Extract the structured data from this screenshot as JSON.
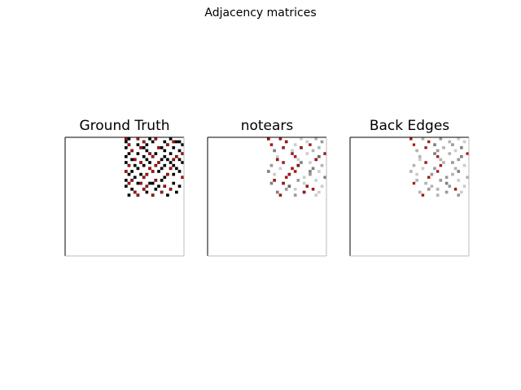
{
  "figure": {
    "suptitle": "Adjacency matrices"
  },
  "chart_data": [
    {
      "type": "heatmap",
      "title": "Ground Truth",
      "n": 40,
      "colormap": "greys",
      "true_edge_color": "#c00000",
      "cells": [
        [
          0,
          20,
          1
        ],
        [
          0,
          21,
          1
        ],
        [
          0,
          24,
          1
        ],
        [
          0,
          28,
          1
        ],
        [
          0,
          30,
          1
        ],
        [
          0,
          35,
          1
        ],
        [
          1,
          20,
          1
        ],
        [
          1,
          26,
          1
        ],
        [
          1,
          29,
          1
        ],
        [
          1,
          33,
          1
        ],
        [
          1,
          36,
          1
        ],
        [
          1,
          37,
          1
        ],
        [
          1,
          38,
          1
        ],
        [
          2,
          21,
          1
        ],
        [
          2,
          24,
          1
        ],
        [
          2,
          27,
          1
        ],
        [
          2,
          34,
          1
        ],
        [
          2,
          39,
          1
        ],
        [
          3,
          20,
          1
        ],
        [
          3,
          25,
          1
        ],
        [
          3,
          26,
          1
        ],
        [
          3,
          31,
          1
        ],
        [
          3,
          32,
          1
        ],
        [
          3,
          36,
          1
        ],
        [
          4,
          22,
          1
        ],
        [
          4,
          27,
          1
        ],
        [
          4,
          33,
          1
        ],
        [
          4,
          38,
          1
        ],
        [
          5,
          21,
          1
        ],
        [
          5,
          24,
          1
        ],
        [
          5,
          28,
          1
        ],
        [
          5,
          30,
          1
        ],
        [
          5,
          35,
          1
        ],
        [
          5,
          39,
          1
        ],
        [
          6,
          20,
          1
        ],
        [
          6,
          26,
          1
        ],
        [
          6,
          29,
          1
        ],
        [
          6,
          33,
          1
        ],
        [
          6,
          37,
          1
        ],
        [
          7,
          22,
          1
        ],
        [
          7,
          23,
          1
        ],
        [
          7,
          27,
          1
        ],
        [
          7,
          32,
          1
        ],
        [
          7,
          34,
          1
        ],
        [
          7,
          36,
          1
        ],
        [
          7,
          38,
          1
        ],
        [
          8,
          20,
          1
        ],
        [
          8,
          25,
          1
        ],
        [
          8,
          28,
          1
        ],
        [
          8,
          31,
          1
        ],
        [
          8,
          35,
          1
        ],
        [
          8,
          39,
          1
        ],
        [
          9,
          21,
          1
        ],
        [
          9,
          23,
          1
        ],
        [
          9,
          26,
          1
        ],
        [
          9,
          30,
          1
        ],
        [
          9,
          33,
          1
        ],
        [
          9,
          36,
          1
        ],
        [
          10,
          24,
          1
        ],
        [
          10,
          28,
          1
        ],
        [
          10,
          32,
          1
        ],
        [
          10,
          35,
          1
        ],
        [
          10,
          37,
          1
        ],
        [
          11,
          20,
          1
        ],
        [
          11,
          22,
          1
        ],
        [
          11,
          29,
          1
        ],
        [
          11,
          31,
          1
        ],
        [
          11,
          38,
          1
        ],
        [
          12,
          21,
          1
        ],
        [
          12,
          25,
          1
        ],
        [
          12,
          27,
          1
        ],
        [
          12,
          34,
          1
        ],
        [
          12,
          36,
          1
        ],
        [
          13,
          23,
          1
        ],
        [
          13,
          26,
          1
        ],
        [
          13,
          33,
          1
        ],
        [
          13,
          39,
          1
        ],
        [
          14,
          20,
          1
        ],
        [
          14,
          22,
          1
        ],
        [
          14,
          30,
          1
        ],
        [
          14,
          32,
          1
        ],
        [
          15,
          21,
          1
        ],
        [
          15,
          24,
          1
        ],
        [
          15,
          25,
          1
        ],
        [
          15,
          28,
          1
        ],
        [
          15,
          29,
          1
        ],
        [
          15,
          36,
          1
        ],
        [
          16,
          20,
          1
        ],
        [
          16,
          27,
          1
        ],
        [
          16,
          31,
          1
        ],
        [
          16,
          33,
          1
        ],
        [
          16,
          38,
          1
        ],
        [
          17,
          22,
          1
        ],
        [
          17,
          26,
          1
        ],
        [
          17,
          30,
          1
        ],
        [
          17,
          35,
          1
        ],
        [
          18,
          23,
          1
        ],
        [
          18,
          27,
          1
        ],
        [
          18,
          32,
          1
        ],
        [
          18,
          37,
          1
        ],
        [
          19,
          21,
          1
        ],
        [
          19,
          24,
          1
        ],
        [
          19,
          29,
          1
        ],
        [
          19,
          34,
          1
        ]
      ],
      "true_edges": [
        [
          0,
          20
        ],
        [
          0,
          24
        ],
        [
          0,
          30
        ],
        [
          1,
          26
        ],
        [
          1,
          36
        ],
        [
          2,
          21
        ],
        [
          2,
          34
        ],
        [
          3,
          25
        ],
        [
          3,
          31
        ],
        [
          4,
          22
        ],
        [
          5,
          28
        ],
        [
          5,
          39
        ],
        [
          6,
          29
        ],
        [
          6,
          37
        ],
        [
          7,
          23
        ],
        [
          7,
          36
        ],
        [
          8,
          25
        ],
        [
          8,
          31
        ],
        [
          9,
          21
        ],
        [
          9,
          30
        ],
        [
          10,
          28
        ],
        [
          10,
          35
        ],
        [
          11,
          20
        ],
        [
          11,
          29
        ],
        [
          12,
          27
        ],
        [
          12,
          34
        ],
        [
          13,
          26
        ],
        [
          13,
          39
        ],
        [
          14,
          22
        ],
        [
          14,
          30
        ],
        [
          15,
          21
        ],
        [
          15,
          25
        ],
        [
          16,
          27
        ],
        [
          16,
          33
        ],
        [
          17,
          26
        ],
        [
          17,
          35
        ],
        [
          18,
          23
        ],
        [
          18,
          32
        ],
        [
          19,
          24
        ],
        [
          19,
          29
        ]
      ]
    },
    {
      "type": "heatmap",
      "title": "notears",
      "n": 40,
      "colormap": "greys",
      "true_edge_color": "#c00000",
      "cells": [
        [
          0,
          20,
          0.9
        ],
        [
          0,
          24,
          0.7
        ],
        [
          0,
          31,
          0.2
        ],
        [
          0,
          36,
          0.3
        ],
        [
          1,
          26,
          0.8
        ],
        [
          1,
          33,
          0.2
        ],
        [
          1,
          38,
          0.4
        ],
        [
          2,
          21,
          0.6
        ],
        [
          2,
          29,
          0.2
        ],
        [
          2,
          34,
          0.5
        ],
        [
          3,
          25,
          0.7
        ],
        [
          3,
          31,
          0.8
        ],
        [
          3,
          37,
          0.3
        ],
        [
          4,
          22,
          0.5
        ],
        [
          4,
          28,
          0.2
        ],
        [
          4,
          35,
          0.3
        ],
        [
          5,
          28,
          0.6
        ],
        [
          5,
          33,
          0.2
        ],
        [
          5,
          39,
          0.7
        ],
        [
          6,
          29,
          0.5
        ],
        [
          6,
          37,
          0.6
        ],
        [
          6,
          23,
          0.2
        ],
        [
          7,
          23,
          0.7
        ],
        [
          7,
          30,
          0.2
        ],
        [
          7,
          36,
          0.8
        ],
        [
          8,
          25,
          0.6
        ],
        [
          8,
          31,
          0.5
        ],
        [
          8,
          34,
          0.2
        ],
        [
          9,
          21,
          0.4
        ],
        [
          9,
          30,
          0.9
        ],
        [
          9,
          38,
          0.3
        ],
        [
          10,
          28,
          0.7
        ],
        [
          10,
          35,
          0.5
        ],
        [
          10,
          24,
          0.2
        ],
        [
          11,
          20,
          0.5
        ],
        [
          11,
          29,
          0.6
        ],
        [
          11,
          34,
          0.5
        ],
        [
          11,
          37,
          0.2
        ],
        [
          12,
          27,
          0.8
        ],
        [
          12,
          34,
          0.4
        ],
        [
          12,
          22,
          0.2
        ],
        [
          13,
          26,
          0.6
        ],
        [
          13,
          39,
          0.5
        ],
        [
          13,
          32,
          0.2
        ],
        [
          14,
          22,
          0.7
        ],
        [
          14,
          30,
          0.4
        ],
        [
          14,
          36,
          0.2
        ],
        [
          15,
          21,
          0.5
        ],
        [
          15,
          25,
          0.8
        ],
        [
          15,
          32,
          0.2
        ],
        [
          16,
          27,
          0.6
        ],
        [
          16,
          33,
          0.7
        ],
        [
          16,
          38,
          0.2
        ],
        [
          17,
          26,
          0.4
        ],
        [
          17,
          35,
          0.6
        ],
        [
          17,
          29,
          0.2
        ],
        [
          18,
          23,
          0.5
        ],
        [
          18,
          32,
          0.9
        ],
        [
          18,
          37,
          0.2
        ],
        [
          19,
          24,
          0.7
        ],
        [
          19,
          29,
          0.4
        ],
        [
          19,
          36,
          0.2
        ]
      ],
      "true_edges": [
        [
          0,
          20
        ],
        [
          0,
          24
        ],
        [
          1,
          26
        ],
        [
          2,
          21
        ],
        [
          2,
          34
        ],
        [
          3,
          25
        ],
        [
          3,
          31
        ],
        [
          5,
          28
        ],
        [
          5,
          39
        ],
        [
          6,
          29
        ],
        [
          7,
          23
        ],
        [
          7,
          36
        ],
        [
          8,
          25
        ],
        [
          9,
          30
        ],
        [
          10,
          28
        ],
        [
          11,
          29
        ],
        [
          12,
          27
        ],
        [
          13,
          26
        ],
        [
          14,
          22
        ],
        [
          15,
          25
        ],
        [
          16,
          33
        ],
        [
          17,
          35
        ],
        [
          18,
          32
        ],
        [
          19,
          24
        ]
      ]
    },
    {
      "type": "heatmap",
      "title": "Back Edges",
      "n": 40,
      "colormap": "greys",
      "true_edge_color": "#c00000",
      "cells": [
        [
          0,
          20,
          0.5
        ],
        [
          0,
          24,
          0.3
        ],
        [
          0,
          30,
          0.4
        ],
        [
          0,
          36,
          0.2
        ],
        [
          1,
          26,
          0.4
        ],
        [
          1,
          33,
          0.3
        ],
        [
          1,
          38,
          0.2
        ],
        [
          2,
          21,
          0.3
        ],
        [
          2,
          28,
          0.5
        ],
        [
          2,
          34,
          0.4
        ],
        [
          3,
          25,
          0.4
        ],
        [
          3,
          31,
          0.3
        ],
        [
          3,
          37,
          0.5
        ],
        [
          4,
          22,
          0.3
        ],
        [
          4,
          29,
          0.4
        ],
        [
          4,
          35,
          0.2
        ],
        [
          5,
          28,
          0.5
        ],
        [
          5,
          33,
          0.3
        ],
        [
          5,
          39,
          0.4
        ],
        [
          6,
          23,
          0.3
        ],
        [
          6,
          29,
          0.4
        ],
        [
          6,
          37,
          0.5
        ],
        [
          7,
          23,
          0.2
        ],
        [
          7,
          30,
          0.3
        ],
        [
          7,
          36,
          0.4
        ],
        [
          8,
          25,
          0.5
        ],
        [
          8,
          31,
          0.3
        ],
        [
          8,
          34,
          0.4
        ],
        [
          9,
          21,
          0.3
        ],
        [
          9,
          30,
          0.5
        ],
        [
          9,
          38,
          0.2
        ],
        [
          10,
          28,
          0.4
        ],
        [
          10,
          35,
          0.3
        ],
        [
          10,
          24,
          0.2
        ],
        [
          11,
          20,
          0.3
        ],
        [
          11,
          29,
          0.4
        ],
        [
          11,
          36,
          0.5
        ],
        [
          12,
          27,
          0.4
        ],
        [
          12,
          34,
          0.3
        ],
        [
          12,
          22,
          0.2
        ],
        [
          13,
          26,
          0.5
        ],
        [
          13,
          32,
          0.4
        ],
        [
          13,
          39,
          0.3
        ],
        [
          14,
          22,
          0.3
        ],
        [
          14,
          30,
          0.4
        ],
        [
          14,
          36,
          0.2
        ],
        [
          15,
          21,
          0.4
        ],
        [
          15,
          25,
          0.3
        ],
        [
          15,
          32,
          0.5
        ],
        [
          16,
          27,
          0.3
        ],
        [
          16,
          33,
          0.4
        ],
        [
          16,
          38,
          0.2
        ],
        [
          17,
          26,
          0.4
        ],
        [
          17,
          29,
          0.3
        ],
        [
          17,
          35,
          0.5
        ],
        [
          18,
          23,
          0.3
        ],
        [
          18,
          32,
          0.4
        ],
        [
          18,
          37,
          0.2
        ],
        [
          19,
          24,
          0.5
        ],
        [
          19,
          29,
          0.3
        ],
        [
          19,
          36,
          0.4
        ]
      ],
      "true_edges": [
        [
          0,
          20
        ],
        [
          1,
          26
        ],
        [
          2,
          21
        ],
        [
          3,
          25
        ],
        [
          5,
          39
        ],
        [
          6,
          29
        ],
        [
          8,
          25
        ],
        [
          9,
          30
        ],
        [
          11,
          29
        ],
        [
          13,
          26
        ],
        [
          15,
          21
        ],
        [
          17,
          35
        ],
        [
          19,
          24
        ]
      ]
    }
  ]
}
